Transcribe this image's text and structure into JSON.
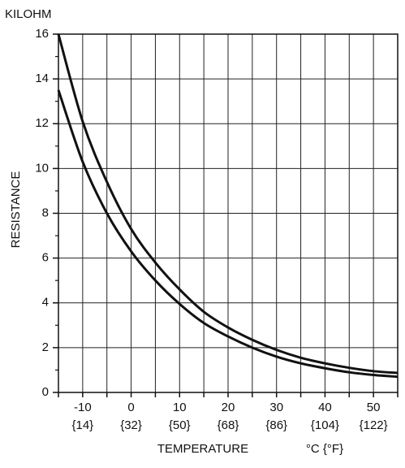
{
  "chart_data": {
    "type": "line",
    "y_unit": "KILOHM",
    "y_label": "RESISTANCE",
    "x_label": "TEMPERATURE",
    "x_unit": "°C {°F}",
    "x": [
      -15,
      -10,
      -5,
      0,
      5,
      10,
      15,
      20,
      25,
      30,
      35,
      40,
      45,
      50,
      55
    ],
    "series": [
      {
        "color": "#111111",
        "values": [
          16,
          12.1,
          9.4,
          7.3,
          5.8,
          4.6,
          3.6,
          2.9,
          2.35,
          1.9,
          1.55,
          1.3,
          1.1,
          0.95,
          0.87
        ]
      },
      {
        "color": "#111111",
        "values": [
          13.5,
          10.3,
          8.0,
          6.3,
          5.0,
          3.95,
          3.1,
          2.5,
          2.0,
          1.6,
          1.3,
          1.08,
          0.9,
          0.78,
          0.7
        ]
      }
    ],
    "xlim": [
      -15,
      55
    ],
    "xticks": [
      -15,
      -10,
      -5,
      0,
      5,
      10,
      15,
      20,
      25,
      30,
      35,
      40,
      45,
      50,
      55
    ],
    "xtick_fahrenheit": [
      null,
      "{14}",
      null,
      "{32}",
      null,
      "{50}",
      null,
      "{68}",
      null,
      "{86}",
      null,
      "{104}",
      null,
      "{122}",
      null
    ],
    "ylim": [
      0,
      16
    ],
    "yticks": [
      0,
      2,
      4,
      6,
      8,
      10,
      12,
      14,
      16
    ],
    "yminor_ticks": [
      1,
      3,
      5,
      7,
      9,
      11,
      13,
      15
    ],
    "grid": true
  }
}
